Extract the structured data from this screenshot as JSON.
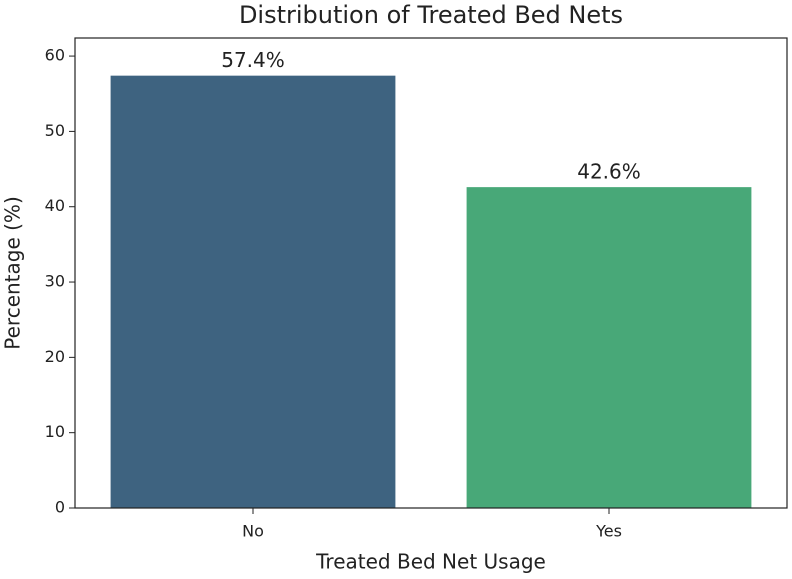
{
  "chart_data": {
    "type": "bar",
    "title": "Distribution of Treated Bed Nets",
    "x_label": "Treated Bed Net Usage",
    "y_label": "Percentage (%)",
    "categories": [
      "No",
      "Yes"
    ],
    "values": [
      57.4,
      42.6
    ],
    "value_labels": [
      "57.4%",
      "42.6%"
    ],
    "colors": [
      "#3e6380",
      "#48a878"
    ],
    "ylim": [
      0,
      62.4
    ],
    "yticks": [
      0,
      10,
      20,
      30,
      40,
      50,
      60
    ],
    "grid": false
  }
}
